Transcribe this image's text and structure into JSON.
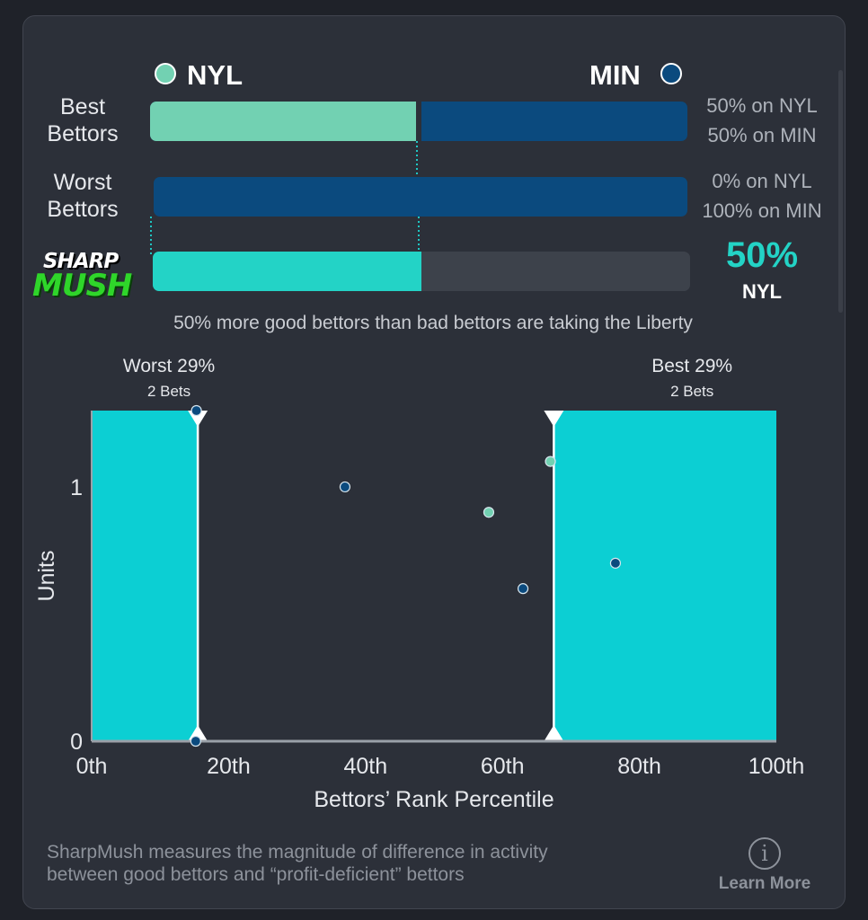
{
  "teams": {
    "home": {
      "label": "NYL",
      "color": "#72d1b2"
    },
    "away": {
      "label": "MIN",
      "color": "#0b4a7e"
    }
  },
  "rows": {
    "best": {
      "label_line1": "Best",
      "label_line2": "Bettors",
      "pct_home": 50,
      "pct_away": 50,
      "text_home": "50% on NYL",
      "text_away": "50% on MIN"
    },
    "worst": {
      "label_line1": "Worst",
      "label_line2": "Bettors",
      "pct_home": 0,
      "pct_away": 100,
      "text_home": "0% on NYL",
      "text_away": "100% on MIN"
    },
    "sharpmush": {
      "logo_line1": "SHARP",
      "logo_line2": "MUSH",
      "value_pct": 50,
      "value_text": "50%",
      "team": "NYL"
    }
  },
  "summary": "50% more good bettors than bad bettors are taking the Liberty",
  "chart_data": {
    "type": "scatter",
    "xlabel": "Bettors’ Rank Percentile",
    "ylabel": "Units",
    "xlim": [
      0,
      100
    ],
    "ylim": [
      0,
      1.3
    ],
    "x_ticks": [
      0,
      20,
      40,
      60,
      80,
      100
    ],
    "x_tick_labels": [
      "0th",
      "20th",
      "40th",
      "60th",
      "80th",
      "100th"
    ],
    "y_ticks": [
      0,
      1
    ],
    "y_tick_labels": [
      "0",
      "1"
    ],
    "grid": false,
    "regions": {
      "worst": {
        "x0": 0,
        "x1": 15.5,
        "label": "Worst 29%",
        "sublabel": "2 Bets"
      },
      "best": {
        "x0": 67.5,
        "x1": 100,
        "label": "Best 29%",
        "sublabel": "2 Bets"
      }
    },
    "region_color": "#0ccfd3",
    "series": [
      {
        "team": "NYL",
        "color": "#72d1b2",
        "x": [
          58,
          67
        ],
        "y": [
          0.9,
          1.1
        ]
      },
      {
        "team": "MIN",
        "color": "#0b4a7e",
        "x": [
          15.3,
          37,
          63,
          76.5,
          15.2
        ],
        "y": [
          1.3,
          1.0,
          0.6,
          0.7,
          0.0
        ]
      }
    ]
  },
  "footer": {
    "text_line1": "SharpMush measures the magnitude of difference in activity",
    "text_line2": "between good bettors and “profit-deficient” bettors",
    "learn_more": "Learn More",
    "info_icon": "info-icon"
  }
}
